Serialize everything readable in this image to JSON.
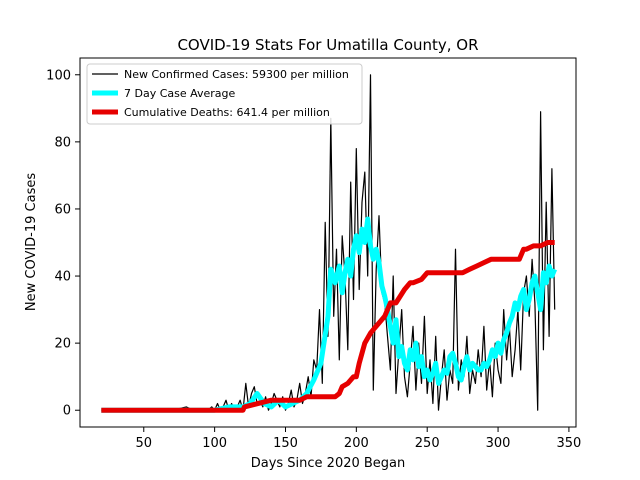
{
  "chart_data": {
    "type": "line",
    "title": "COVID-19 Stats For Umatilla County, OR",
    "xlabel": "Days Since 2020 Began",
    "ylabel": "New COVID-19 Cases",
    "xlim": [
      5,
      355
    ],
    "ylim": [
      -5,
      105
    ],
    "xticks": [
      50,
      100,
      150,
      200,
      250,
      300,
      350
    ],
    "yticks": [
      0,
      20,
      40,
      60,
      80,
      100
    ],
    "grid": false,
    "legend_position": "top-left",
    "series": [
      {
        "name": "New Confirmed Cases: 59300 per million",
        "color": "#000000",
        "x": [
          20,
          30,
          40,
          50,
          60,
          70,
          80,
          85,
          90,
          95,
          98,
          100,
          102,
          104,
          106,
          108,
          110,
          112,
          114,
          116,
          118,
          120,
          122,
          124,
          126,
          128,
          130,
          132,
          134,
          136,
          138,
          140,
          142,
          144,
          146,
          148,
          150,
          152,
          154,
          156,
          158,
          160,
          162,
          164,
          166,
          168,
          170,
          172,
          174,
          176,
          178,
          180,
          182,
          184,
          186,
          188,
          190,
          192,
          194,
          196,
          198,
          200,
          202,
          204,
          206,
          208,
          210,
          212,
          214,
          216,
          218,
          220,
          222,
          224,
          226,
          228,
          230,
          232,
          234,
          236,
          238,
          240,
          242,
          244,
          246,
          248,
          250,
          252,
          254,
          256,
          258,
          260,
          262,
          264,
          266,
          268,
          270,
          272,
          274,
          276,
          278,
          280,
          282,
          284,
          286,
          288,
          290,
          292,
          294,
          296,
          298,
          300,
          302,
          304,
          306,
          308,
          310,
          312,
          314,
          316,
          318,
          320,
          322,
          324,
          326,
          328,
          330,
          332,
          334,
          336,
          338,
          340
        ],
        "values": [
          0,
          0,
          0,
          0,
          0,
          0,
          1,
          0,
          0,
          0,
          1,
          0,
          2,
          0,
          1,
          3,
          0,
          2,
          0,
          1,
          3,
          0,
          8,
          1,
          5,
          7,
          2,
          3,
          1,
          4,
          0,
          2,
          5,
          3,
          1,
          4,
          0,
          2,
          6,
          1,
          3,
          8,
          2,
          5,
          10,
          4,
          15,
          12,
          30,
          8,
          56,
          22,
          87,
          28,
          48,
          15,
          52,
          40,
          18,
          68,
          33,
          78,
          36,
          62,
          71,
          40,
          100,
          6,
          42,
          58,
          35,
          32,
          22,
          12,
          40,
          5,
          18,
          30,
          10,
          4,
          14,
          25,
          6,
          20,
          8,
          28,
          5,
          15,
          2,
          22,
          0,
          10,
          18,
          3,
          12,
          8,
          48,
          6,
          15,
          10,
          22,
          5,
          12,
          8,
          18,
          10,
          25,
          6,
          15,
          4,
          20,
          12,
          8,
          30,
          15,
          25,
          10,
          18,
          30,
          12,
          35,
          40,
          28,
          45,
          32,
          0,
          89,
          18,
          62,
          22,
          72,
          30
        ],
        "stroke_width": 1.2
      },
      {
        "name": "7 Day Case Average",
        "color": "#00ffff",
        "x": [
          20,
          60,
          100,
          110,
          115,
          120,
          125,
          130,
          135,
          140,
          145,
          150,
          155,
          160,
          165,
          170,
          175,
          180,
          182,
          185,
          188,
          190,
          192,
          194,
          196,
          198,
          200,
          202,
          204,
          206,
          208,
          210,
          212,
          214,
          216,
          218,
          220,
          222,
          224,
          226,
          228,
          230,
          232,
          234,
          236,
          238,
          240,
          242,
          244,
          246,
          248,
          250,
          252,
          254,
          256,
          258,
          260,
          262,
          264,
          266,
          268,
          270,
          272,
          274,
          276,
          278,
          280,
          282,
          284,
          286,
          288,
          290,
          292,
          294,
          296,
          298,
          300,
          302,
          304,
          306,
          308,
          310,
          312,
          314,
          316,
          318,
          320,
          322,
          324,
          326,
          328,
          330,
          332,
          334,
          336,
          338,
          340
        ],
        "values": [
          0,
          0,
          0,
          1,
          1,
          1,
          2,
          5,
          2,
          1,
          3,
          1,
          2,
          3,
          5,
          9,
          14,
          28,
          42,
          38,
          43,
          35,
          41,
          45,
          40,
          48,
          52,
          47,
          54,
          50,
          57,
          49,
          45,
          48,
          44,
          37,
          34,
          30,
          25,
          20,
          27,
          16,
          19,
          14,
          12,
          18,
          15,
          20,
          13,
          16,
          10,
          12,
          9,
          11,
          14,
          8,
          10,
          12,
          11,
          16,
          17,
          14,
          10,
          9,
          13,
          16,
          12,
          14,
          13,
          12,
          12,
          14,
          13,
          15,
          18,
          16,
          20,
          17,
          21,
          23,
          26,
          28,
          32,
          30,
          34,
          36,
          30,
          33,
          38,
          40,
          35,
          30,
          41,
          38,
          43,
          40,
          42
        ],
        "stroke_width": 5
      },
      {
        "name": "Cumulative Deaths: 641.4 per million",
        "color": "#e60000",
        "x": [
          20,
          120,
          121,
          140,
          160,
          165,
          170,
          185,
          188,
          190,
          194,
          196,
          198,
          200,
          202,
          206,
          210,
          212,
          216,
          220,
          224,
          226,
          228,
          234,
          238,
          240,
          246,
          250,
          256,
          262,
          266,
          270,
          275,
          280,
          285,
          290,
          295,
          300,
          305,
          310,
          315,
          318,
          320,
          325,
          330,
          335,
          340
        ],
        "values": [
          0,
          0,
          1,
          3,
          3,
          4,
          4,
          4,
          5,
          7,
          8,
          9,
          10,
          10,
          14,
          20,
          23,
          24,
          26,
          28,
          32,
          32,
          32,
          36,
          38,
          38,
          39,
          41,
          41,
          41,
          41,
          41,
          41,
          42,
          43,
          44,
          45,
          45,
          45,
          45,
          45,
          48,
          48,
          49,
          49,
          50,
          50
        ],
        "stroke_width": 5
      }
    ]
  }
}
